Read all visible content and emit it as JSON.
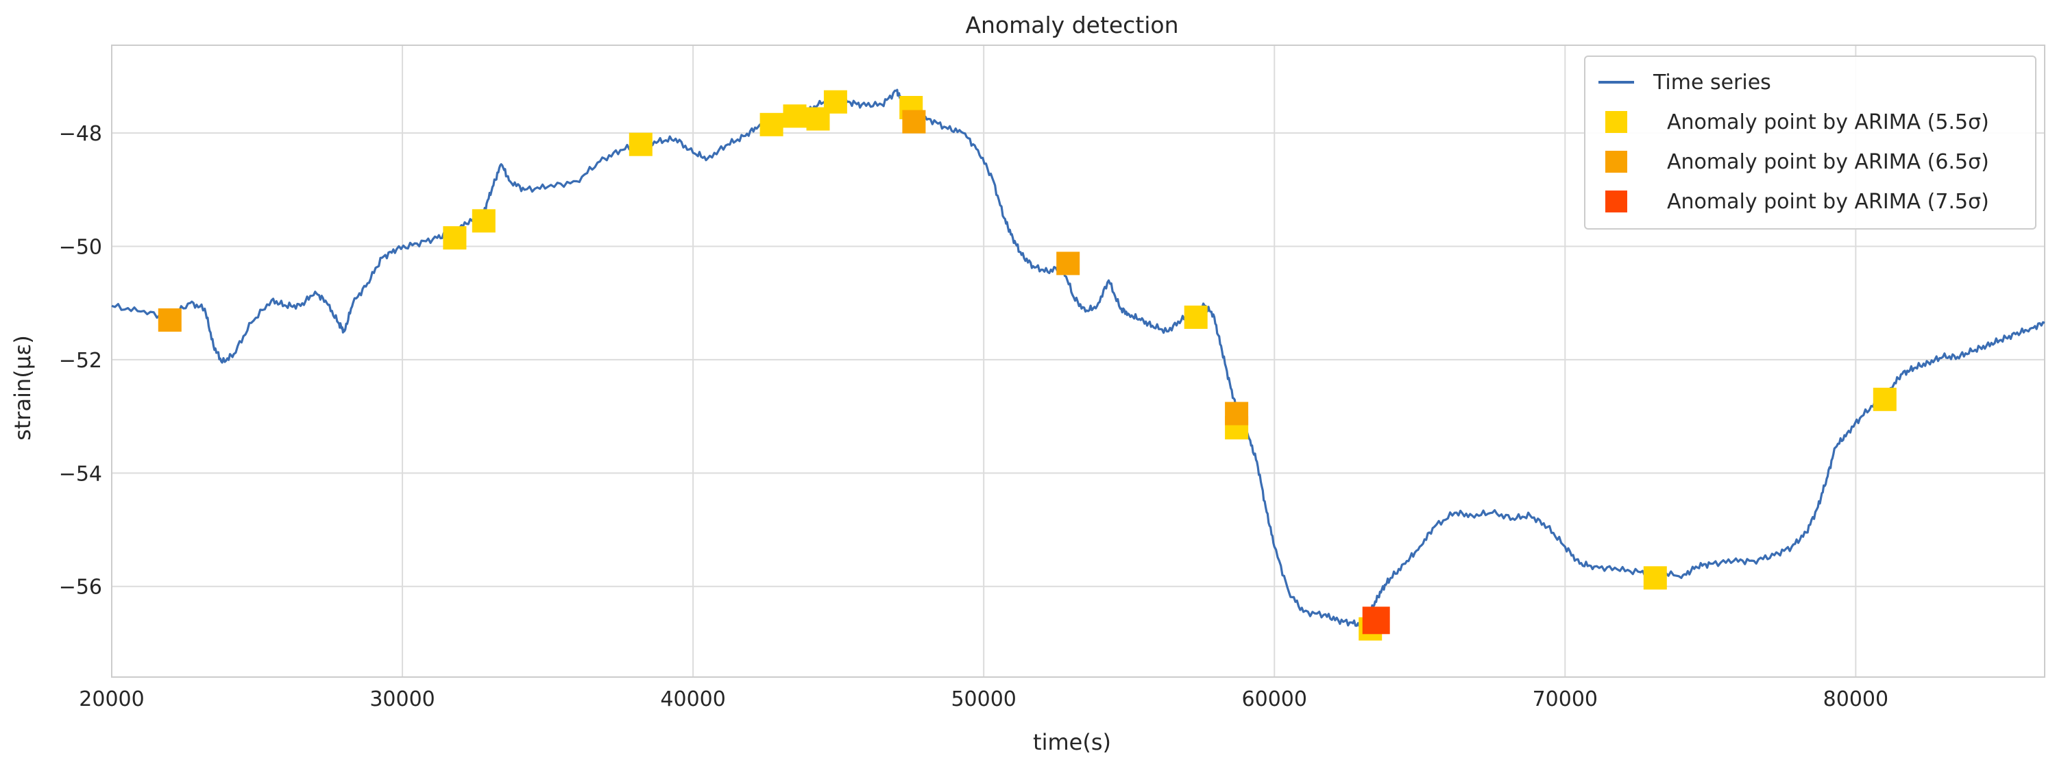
{
  "chart_data": {
    "type": "line",
    "title": "Anomaly detection",
    "xlabel": "time(s)",
    "ylabel": "strain(με)",
    "xlim": [
      20000,
      86500
    ],
    "ylim": [
      -57.6,
      -46.45
    ],
    "xticks": [
      20000,
      30000,
      40000,
      50000,
      60000,
      70000,
      80000
    ],
    "yticks": [
      -48,
      -50,
      -52,
      -54,
      -56
    ],
    "grid": true,
    "legend_position": "top-right",
    "series": [
      {
        "name": "Time series",
        "kind": "line",
        "color": "#3a6db3",
        "x": [
          20000,
          21000,
          22000,
          22700,
          23200,
          23500,
          23800,
          24200,
          24800,
          25500,
          26000,
          26500,
          27000,
          27400,
          27800,
          28000,
          28300,
          28800,
          29300,
          29800,
          30500,
          31200,
          31700,
          32200,
          32800,
          33100,
          33400,
          33700,
          34200,
          35000,
          36000,
          36800,
          37500,
          38200,
          38800,
          39400,
          40000,
          40500,
          41200,
          41800,
          42300,
          42700,
          43200,
          43700,
          44300,
          44800,
          45300,
          45800,
          46500,
          47000,
          47200,
          47600,
          48100,
          48700,
          49300,
          49800,
          50300,
          50700,
          51000,
          51300,
          51700,
          52200,
          52700,
          53100,
          53500,
          53900,
          54300,
          54700,
          55000,
          55400,
          55800,
          56300,
          56800,
          57200,
          57600,
          57900,
          58200,
          58500,
          58800,
          59100,
          59400,
          59700,
          60000,
          60500,
          61000,
          61700,
          62200,
          62700,
          63100,
          63400,
          63700,
          64000,
          64500,
          65000,
          65500,
          66200,
          66800,
          67500,
          68200,
          68800,
          69400,
          70000,
          70500,
          71000,
          71800,
          72600,
          73200,
          74000,
          74500,
          75000,
          75800,
          76500,
          77200,
          77800,
          78300,
          78700,
          79000,
          79300,
          79700,
          80200,
          80800,
          81200,
          81600,
          82000,
          82500,
          83000,
          83500,
          84000,
          84500,
          85000,
          85500,
          86000,
          86500
        ],
        "y": [
          -51.05,
          -51.15,
          -51.25,
          -51.0,
          -51.1,
          -51.75,
          -52.05,
          -51.9,
          -51.35,
          -50.95,
          -51.05,
          -51.05,
          -50.8,
          -51.0,
          -51.35,
          -51.5,
          -51.0,
          -50.65,
          -50.2,
          -50.05,
          -49.95,
          -49.85,
          -49.75,
          -49.6,
          -49.4,
          -48.95,
          -48.55,
          -48.85,
          -49.0,
          -48.95,
          -48.85,
          -48.5,
          -48.3,
          -48.2,
          -48.15,
          -48.1,
          -48.35,
          -48.45,
          -48.2,
          -48.05,
          -47.85,
          -47.85,
          -47.75,
          -47.7,
          -47.5,
          -47.4,
          -47.45,
          -47.5,
          -47.5,
          -47.25,
          -47.45,
          -47.75,
          -47.75,
          -47.9,
          -48.0,
          -48.3,
          -48.8,
          -49.5,
          -49.85,
          -50.15,
          -50.35,
          -50.45,
          -50.35,
          -50.9,
          -51.15,
          -51.05,
          -50.6,
          -51.1,
          -51.2,
          -51.3,
          -51.4,
          -51.5,
          -51.3,
          -51.15,
          -51.05,
          -51.2,
          -51.85,
          -52.5,
          -53.05,
          -53.35,
          -53.8,
          -54.6,
          -55.3,
          -56.1,
          -56.45,
          -56.5,
          -56.6,
          -56.65,
          -56.7,
          -56.35,
          -56.05,
          -55.85,
          -55.6,
          -55.3,
          -54.95,
          -54.7,
          -54.75,
          -54.7,
          -54.8,
          -54.75,
          -54.95,
          -55.3,
          -55.6,
          -55.65,
          -55.7,
          -55.75,
          -55.7,
          -55.85,
          -55.65,
          -55.6,
          -55.55,
          -55.55,
          -55.45,
          -55.3,
          -55.05,
          -54.6,
          -54.1,
          -53.55,
          -53.3,
          -53.0,
          -52.7,
          -52.5,
          -52.25,
          -52.15,
          -52.05,
          -51.95,
          -51.95,
          -51.85,
          -51.75,
          -51.65,
          -51.55,
          -51.45,
          -51.35
        ]
      },
      {
        "name": "Anomaly point by ARIMA (5.5σ)",
        "kind": "marker",
        "color": "#ffd500",
        "x": [
          31800,
          32800,
          38200,
          42700,
          43500,
          44300,
          44900,
          47500,
          57300,
          58700,
          63300,
          73100,
          81000
        ],
        "y": [
          -49.85,
          -49.55,
          -48.2,
          -47.85,
          -47.7,
          -47.75,
          -47.45,
          -47.55,
          -51.25,
          -53.2,
          -56.75,
          -55.85,
          -52.7
        ]
      },
      {
        "name": "Anomaly point by ARIMA (6.5σ)",
        "kind": "marker",
        "color": "#f9a200",
        "x": [
          22000,
          47600,
          52900,
          58700
        ],
        "y": [
          -51.3,
          -47.8,
          -50.3,
          -52.95
        ]
      },
      {
        "name": "Anomaly point by ARIMA (7.5σ)",
        "kind": "marker",
        "color": "#ff4500",
        "x": [
          63500
        ],
        "y": [
          -56.6
        ]
      }
    ]
  }
}
